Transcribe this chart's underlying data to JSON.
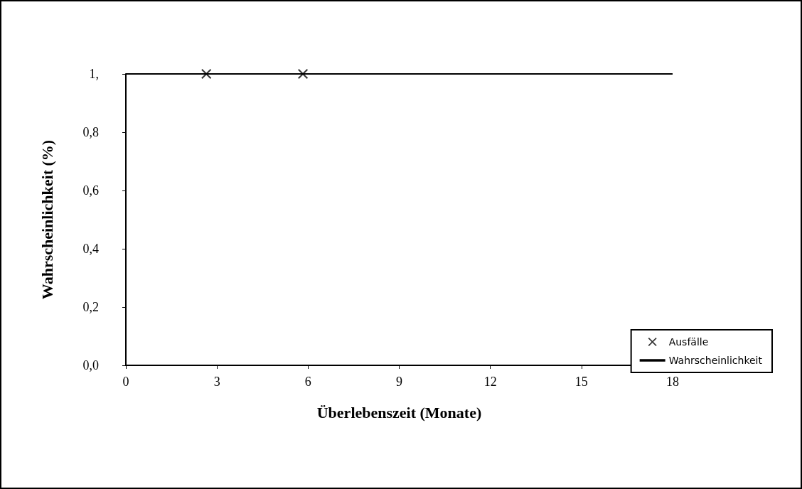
{
  "chart_data": {
    "type": "line",
    "xlabel": "Überlebenszeit (Monate)",
    "ylabel": "Wahrscheinlichkeit (%)",
    "xlim": [
      0,
      18
    ],
    "xticks": [
      0,
      3,
      6,
      9,
      12,
      15,
      18
    ],
    "ylim": [
      0,
      1
    ],
    "yticks": [
      {
        "value": 0,
        "label": "0,0"
      },
      {
        "value": 0.2,
        "label": "0,2"
      },
      {
        "value": 0.4,
        "label": "0,4"
      },
      {
        "value": 0.6,
        "label": "0,6"
      },
      {
        "value": 0.8,
        "label": "0,8"
      },
      {
        "value": 1,
        "label": "1,"
      }
    ],
    "grid": false,
    "legend": "bottom right",
    "series": [
      {
        "name": "Ausfälle",
        "type": "scatter",
        "marker": "cross",
        "color": "#000000",
        "x": [
          2.65,
          5.83
        ],
        "values": [
          1,
          1
        ]
      },
      {
        "name": "Wahrscheinlichkeit",
        "type": "line",
        "marker": "none",
        "color": "#000000",
        "x": [
          0,
          18
        ],
        "values": [
          1,
          1
        ]
      }
    ]
  }
}
